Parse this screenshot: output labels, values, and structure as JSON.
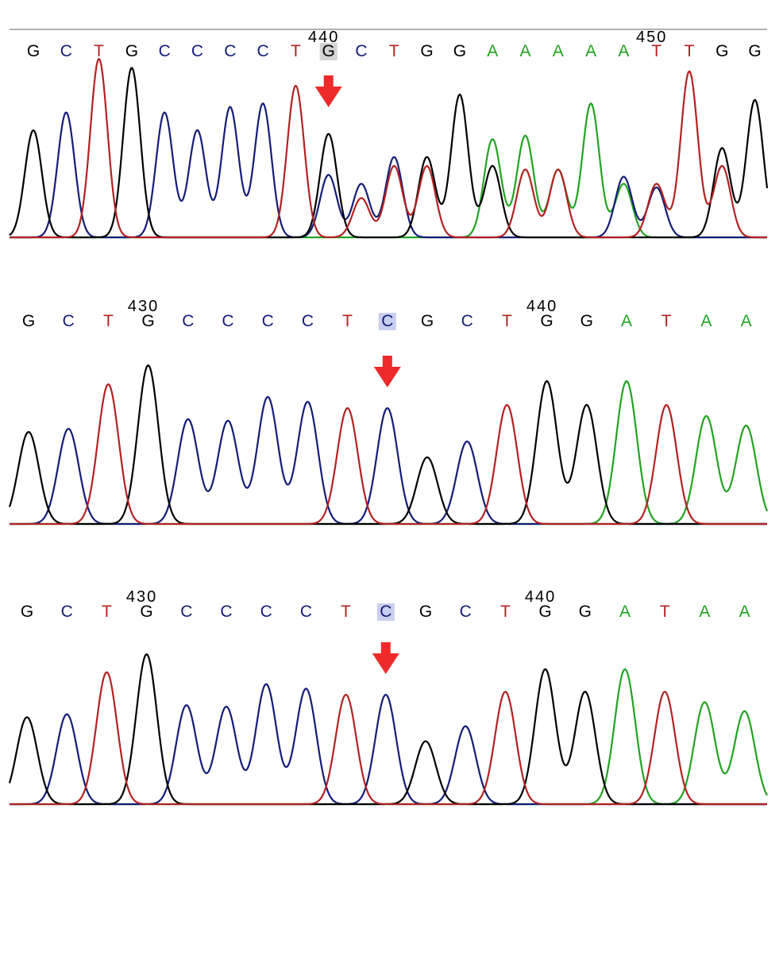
{
  "colors": {
    "A": "#22a322",
    "C": "#141c78",
    "G": "#000000",
    "T": "#b22222",
    "arrow": "#ee2a2a",
    "highlight_gray": "#d3d3d3",
    "highlight_blue": "#c9cfee"
  },
  "chart_data": [
    {
      "type": "line",
      "title": "",
      "sequence": [
        "G",
        "C",
        "T",
        "G",
        "C",
        "C",
        "C",
        "C",
        "T",
        "G",
        "C",
        "T",
        "G",
        "G",
        "A",
        "A",
        "A",
        "A",
        "A",
        "T",
        "T",
        "G",
        "G"
      ],
      "position_labels": [
        {
          "label": "440",
          "index": 9
        },
        {
          "label": "450",
          "index": 19
        }
      ],
      "highlighted_index": 9,
      "mutation_index": 9,
      "primary_peaks": [
        60,
        70,
        100,
        95,
        70,
        60,
        73,
        75,
        85,
        58,
        30,
        40,
        45,
        80,
        55,
        57,
        38,
        75,
        30,
        30,
        93,
        50,
        77
      ],
      "secondary_peaks": [
        {
          "index": 9,
          "base": "C",
          "height": 35
        },
        {
          "index": 10,
          "base": "T",
          "height": 22
        },
        {
          "index": 11,
          "base": "C",
          "height": 45
        },
        {
          "index": 12,
          "base": "T",
          "height": 40
        },
        {
          "index": 14,
          "base": "G",
          "height": 40
        },
        {
          "index": 15,
          "base": "T",
          "height": 38
        },
        {
          "index": 16,
          "base": "T",
          "height": 38
        },
        {
          "index": 18,
          "base": "C",
          "height": 34
        },
        {
          "index": 19,
          "base": "C",
          "height": 28
        },
        {
          "index": 21,
          "base": "T",
          "height": 40
        }
      ]
    },
    {
      "type": "line",
      "title": "",
      "sequence": [
        "G",
        "C",
        "T",
        "G",
        "C",
        "C",
        "C",
        "C",
        "T",
        "C",
        "G",
        "C",
        "T",
        "G",
        "G",
        "A",
        "T",
        "A",
        "A"
      ],
      "position_labels": [
        {
          "label": "430",
          "index": 3
        },
        {
          "label": "440",
          "index": 13
        }
      ],
      "highlighted_index": 9,
      "mutation_index": 9,
      "primary_peaks": [
        58,
        60,
        88,
        100,
        66,
        65,
        80,
        77,
        73,
        73,
        42,
        52,
        75,
        90,
        75,
        90,
        75,
        68,
        62
      ],
      "secondary_peaks": []
    },
    {
      "type": "line",
      "title": "",
      "sequence": [
        "G",
        "C",
        "T",
        "G",
        "C",
        "C",
        "C",
        "C",
        "T",
        "C",
        "G",
        "C",
        "T",
        "G",
        "G",
        "A",
        "T",
        "A",
        "A"
      ],
      "position_labels": [
        {
          "label": "430",
          "index": 3
        },
        {
          "label": "440",
          "index": 13
        }
      ],
      "highlighted_index": 9,
      "mutation_index": 9,
      "primary_peaks": [
        58,
        60,
        88,
        100,
        66,
        65,
        80,
        77,
        73,
        73,
        42,
        52,
        75,
        90,
        75,
        90,
        75,
        68,
        62
      ],
      "secondary_peaks": []
    }
  ]
}
